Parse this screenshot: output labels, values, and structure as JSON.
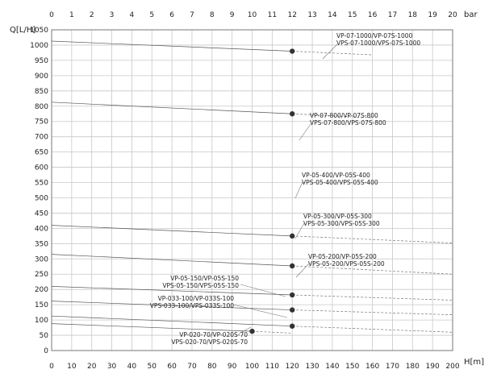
{
  "chart_data": {
    "type": "line",
    "x_axis_bottom": {
      "label": "H[m]",
      "ticks": [
        0,
        10,
        20,
        30,
        40,
        50,
        60,
        70,
        80,
        90,
        100,
        110,
        120,
        130,
        140,
        150,
        160,
        170,
        180,
        190,
        200
      ],
      "range": [
        0,
        200
      ]
    },
    "x_axis_top": {
      "label": "bar",
      "ticks": [
        0,
        1,
        2,
        3,
        4,
        5,
        6,
        7,
        8,
        9,
        10,
        11,
        12,
        13,
        14,
        15,
        16,
        17,
        18,
        19,
        20
      ],
      "range": [
        0,
        20
      ]
    },
    "y_axis": {
      "label": "Q[L/H]",
      "ticks": [
        0,
        50,
        100,
        150,
        200,
        250,
        300,
        350,
        400,
        450,
        500,
        550,
        600,
        650,
        700,
        750,
        800,
        850,
        900,
        950,
        1000,
        1050
      ],
      "range": [
        0,
        1050
      ]
    },
    "grid": true,
    "series": [
      {
        "name_lines": [
          "VP-07-1000/VP-07S-1000",
          "VPS-07-1000/VPS-07S-1000"
        ],
        "solid": [
          [
            0,
            1013
          ],
          [
            120,
            980
          ]
        ],
        "dashed": [
          [
            120,
            980
          ],
          [
            160,
            968
          ]
        ],
        "point": [
          120,
          980
        ]
      },
      {
        "name_lines": [
          "VP-07-800/VP-07S-800",
          "VPS-07-800/VPS-07S-800"
        ],
        "solid": [
          [
            0,
            813
          ],
          [
            120,
            775
          ]
        ],
        "dashed": [
          [
            120,
            775
          ],
          [
            160,
            762
          ]
        ],
        "point": [
          120,
          775
        ]
      },
      {
        "name_lines": [
          "VP-05-400/VP-05S-400",
          "VPS-05-400/VPS-05S-400"
        ],
        "solid": [
          [
            0,
            410
          ],
          [
            120,
            375
          ]
        ],
        "dashed": [
          [
            120,
            375
          ],
          [
            200,
            352
          ]
        ],
        "point": [
          120,
          375
        ]
      },
      {
        "name_lines": [
          "VP-05-300/VP-05S-300",
          "VPS-05-300/VPS-05S-300"
        ],
        "solid": [
          [
            0,
            315
          ],
          [
            120,
            277
          ]
        ],
        "dashed": [
          [
            120,
            277
          ],
          [
            200,
            250
          ]
        ],
        "point": [
          120,
          277
        ]
      },
      {
        "name_lines": [
          "VP-05-200/VP-05S-200",
          "VPS-05-200/VPS-05S-200"
        ],
        "solid": [
          [
            0,
            210
          ],
          [
            120,
            182
          ]
        ],
        "dashed": [
          [
            120,
            182
          ],
          [
            200,
            165
          ]
        ],
        "point": [
          120,
          182
        ]
      },
      {
        "name_lines": [
          "VP-05-150/VP-05S-150",
          "VPS-05-150/VPS-05S-150"
        ],
        "solid": [
          [
            0,
            162
          ],
          [
            120,
            133
          ]
        ],
        "dashed": [
          [
            120,
            133
          ],
          [
            200,
            117
          ]
        ],
        "point": [
          120,
          133
        ]
      },
      {
        "name_lines": [
          "VP-033-100/VP-033S-100",
          "VPS-033-100/VPS-033S-100"
        ],
        "solid": [
          [
            0,
            113
          ],
          [
            120,
            80
          ]
        ],
        "dashed": [
          [
            120,
            80
          ],
          [
            200,
            60
          ]
        ],
        "point": [
          120,
          80
        ]
      },
      {
        "name_lines": [
          "VP-020-70/VP-020S-70",
          "VPS-020-70/VPS-020S-70"
        ],
        "solid": [
          [
            0,
            88
          ],
          [
            100,
            63
          ]
        ],
        "dashed": [
          [
            100,
            63
          ],
          [
            120,
            57
          ]
        ],
        "point": [
          100,
          63
        ]
      }
    ]
  }
}
